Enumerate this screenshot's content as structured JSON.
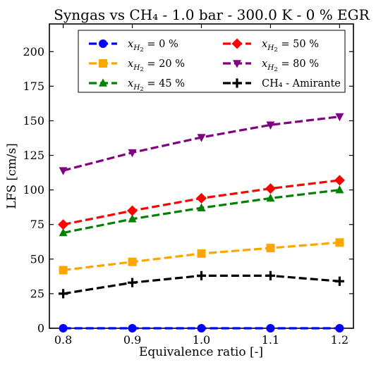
{
  "chart_data": {
    "type": "line",
    "title": "Syngas vs CH₄ - 1.0 bar - 300.0 K - 0 % EGR",
    "xlabel": "Equivalence ratio [-]",
    "ylabel": "LFS [cm/s]",
    "xlim": [
      0.78,
      1.22
    ],
    "ylim": [
      0,
      220
    ],
    "x_ticks": [
      "0.8",
      "0.9",
      "1.0",
      "1.1",
      "1.2"
    ],
    "y_ticks": [
      "0",
      "25",
      "50",
      "75",
      "100",
      "125",
      "150",
      "175",
      "200"
    ],
    "x": [
      0.8,
      0.9,
      1.0,
      1.1,
      1.2
    ],
    "grid": false,
    "legend_position": "top-right",
    "series": [
      {
        "name": "x_H2 = 0 %",
        "label_var": "x",
        "label_sub": "H",
        "label_subsub": "2",
        "label_rest": " = 0 %",
        "color": "#0000ff",
        "marker": "circle",
        "values": [
          0,
          0,
          0,
          0,
          0
        ]
      },
      {
        "name": "x_H2 = 20 %",
        "label_var": "x",
        "label_sub": "H",
        "label_subsub": "2",
        "label_rest": " = 20 %",
        "color": "#ffa500",
        "marker": "square",
        "values": [
          42,
          48,
          54,
          58,
          62
        ]
      },
      {
        "name": "x_H2 = 45 %",
        "label_var": "x",
        "label_sub": "H",
        "label_subsub": "2",
        "label_rest": " = 45 %",
        "color": "#008000",
        "marker": "triangle-up",
        "values": [
          69,
          79,
          87,
          94,
          100
        ]
      },
      {
        "name": "x_H2 = 50 %",
        "label_var": "x",
        "label_sub": "H",
        "label_subsub": "2",
        "label_rest": " = 50 %",
        "color": "#ff0000",
        "marker": "diamond",
        "values": [
          75,
          85,
          94,
          101,
          107
        ]
      },
      {
        "name": "x_H2 = 80 %",
        "label_var": "x",
        "label_sub": "H",
        "label_subsub": "2",
        "label_rest": " = 80 %",
        "color": "#800080",
        "marker": "triangle-down",
        "values": [
          114,
          127,
          138,
          147,
          153
        ]
      },
      {
        "name": "CH₄ - Amirante",
        "label_var": "",
        "label_sub": "",
        "label_subsub": "",
        "label_rest": "CH₄ - Amirante",
        "color": "#000000",
        "marker": "plus",
        "values": [
          25,
          33,
          38,
          38,
          34
        ]
      }
    ]
  }
}
